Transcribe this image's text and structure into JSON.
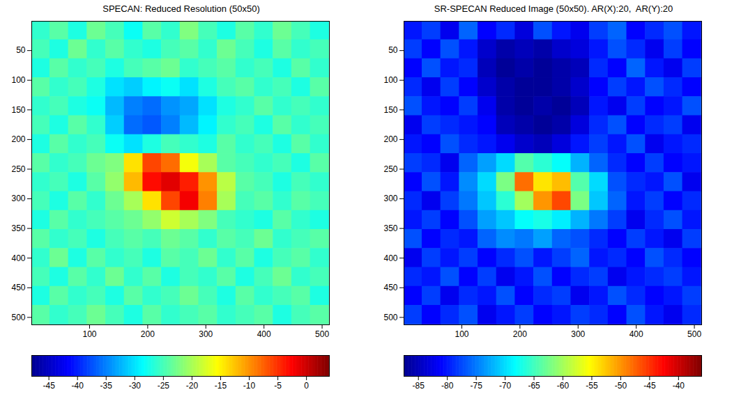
{
  "chart_data": [
    {
      "type": "heatmap",
      "title": "SPECAN: Reduced Resolution (50x50)",
      "color": "jet",
      "x": [
        16,
        48,
        80,
        112,
        144,
        176,
        208,
        240,
        272,
        304,
        336,
        368,
        400,
        432,
        464,
        496
      ],
      "y": [
        16,
        48,
        80,
        112,
        144,
        176,
        208,
        240,
        272,
        304,
        336,
        368,
        400,
        432,
        464,
        496
      ],
      "xlim": [
        0.5,
        512.5
      ],
      "ylim": [
        512.5,
        0.5
      ],
      "xticks": [
        100,
        200,
        300,
        400,
        500
      ],
      "yticks": [
        50,
        100,
        150,
        200,
        250,
        300,
        350,
        400,
        450,
        500
      ],
      "values": [
        [
          -26,
          -24,
          -27,
          -23,
          -25,
          -28,
          -24,
          -26,
          -22,
          -25,
          -27,
          -24,
          -26,
          -23,
          -25,
          -27
        ],
        [
          -25,
          -27,
          -23,
          -26,
          -24,
          -26,
          -27,
          -25,
          -24,
          -26,
          -23,
          -25,
          -27,
          -24,
          -26,
          -25
        ],
        [
          -27,
          -24,
          -26,
          -25,
          -27,
          -25,
          -24,
          -23,
          -26,
          -25,
          -24,
          -26,
          -25,
          -27,
          -24,
          -26
        ],
        [
          -24,
          -26,
          -25,
          -27,
          -30,
          -31,
          -29,
          -28,
          -30,
          -27,
          -25,
          -24,
          -26,
          -25,
          -27,
          -24
        ],
        [
          -26,
          -25,
          -27,
          -28,
          -32,
          -35,
          -36,
          -34,
          -33,
          -30,
          -27,
          -26,
          -24,
          -26,
          -25,
          -26
        ],
        [
          -25,
          -27,
          -24,
          -26,
          -31,
          -36,
          -37,
          -35,
          -32,
          -29,
          -26,
          -25,
          -27,
          -24,
          -26,
          -25
        ],
        [
          -27,
          -24,
          -26,
          -25,
          -28,
          -30,
          -27,
          -25,
          -26,
          -27,
          -24,
          -26,
          -25,
          -27,
          -24,
          -26
        ],
        [
          -24,
          -26,
          -25,
          -23,
          -22,
          -14,
          -6,
          -8,
          -16,
          -20,
          -24,
          -25,
          -26,
          -25,
          -27,
          -24
        ],
        [
          -26,
          -25,
          -27,
          -24,
          -21,
          -12,
          -3,
          -1,
          -4,
          -10,
          -19,
          -24,
          -25,
          -27,
          -25,
          -26
        ],
        [
          -25,
          -27,
          -24,
          -26,
          -23,
          -20,
          -14,
          -6,
          -2,
          -9,
          -20,
          -25,
          -24,
          -26,
          -24,
          -25
        ],
        [
          -27,
          -24,
          -26,
          -25,
          -24,
          -23,
          -21,
          -18,
          -20,
          -22,
          -25,
          -26,
          -27,
          -24,
          -26,
          -27
        ],
        [
          -24,
          -26,
          -25,
          -27,
          -25,
          -24,
          -25,
          -23,
          -24,
          -26,
          -24,
          -25,
          -23,
          -26,
          -25,
          -24
        ],
        [
          -26,
          -23,
          -27,
          -24,
          -26,
          -25,
          -27,
          -24,
          -25,
          -23,
          -26,
          -24,
          -27,
          -25,
          -24,
          -26
        ],
        [
          -25,
          -27,
          -24,
          -26,
          -23,
          -26,
          -24,
          -27,
          -25,
          -26,
          -24,
          -27,
          -25,
          -23,
          -26,
          -25
        ],
        [
          -27,
          -24,
          -26,
          -25,
          -27,
          -24,
          -26,
          -25,
          -23,
          -25,
          -27,
          -24,
          -26,
          -25,
          -24,
          -27
        ],
        [
          -24,
          -26,
          -25,
          -23,
          -25,
          -27,
          -24,
          -26,
          -25,
          -24,
          -26,
          -25,
          -24,
          -27,
          -25,
          -24
        ]
      ],
      "colorbar": {
        "range": [
          -48,
          4
        ],
        "ticks": [
          -45,
          -40,
          -35,
          -30,
          -25,
          -20,
          -15,
          -10,
          -5,
          0
        ]
      }
    },
    {
      "type": "heatmap",
      "title": "SR-SPECAN Reduced Image (50x50). AR(X):20,  AR(Y):20",
      "color": "jet",
      "x": [
        16,
        48,
        80,
        112,
        144,
        176,
        208,
        240,
        272,
        304,
        336,
        368,
        400,
        432,
        464,
        496
      ],
      "y": [
        16,
        48,
        80,
        112,
        144,
        176,
        208,
        240,
        272,
        304,
        336,
        368,
        400,
        432,
        464,
        496
      ],
      "xlim": [
        0.5,
        512.5
      ],
      "ylim": [
        512.5,
        0.5
      ],
      "xticks": [
        100,
        200,
        300,
        400,
        500
      ],
      "yticks": [
        50,
        100,
        150,
        200,
        250,
        300,
        350,
        400,
        450,
        500
      ],
      "values": [
        [
          -80,
          -78,
          -82,
          -76,
          -81,
          -79,
          -83,
          -77,
          -80,
          -82,
          -78,
          -76,
          -81,
          -79,
          -77,
          -80
        ],
        [
          -78,
          -81,
          -77,
          -80,
          -84,
          -86,
          -85,
          -86,
          -84,
          -83,
          -80,
          -77,
          -79,
          -82,
          -78,
          -81
        ],
        [
          -81,
          -77,
          -80,
          -79,
          -85,
          -87,
          -86,
          -87,
          -86,
          -85,
          -79,
          -81,
          -76,
          -80,
          -82,
          -78
        ],
        [
          -79,
          -82,
          -78,
          -81,
          -84,
          -86,
          -87,
          -87,
          -86,
          -84,
          -81,
          -78,
          -80,
          -77,
          -79,
          -81
        ],
        [
          -77,
          -80,
          -81,
          -78,
          -82,
          -86,
          -87,
          -86,
          -87,
          -85,
          -80,
          -82,
          -78,
          -81,
          -80,
          -77
        ],
        [
          -82,
          -78,
          -79,
          -80,
          -81,
          -85,
          -86,
          -87,
          -86,
          -83,
          -79,
          -77,
          -81,
          -79,
          -78,
          -82
        ],
        [
          -80,
          -81,
          -77,
          -79,
          -80,
          -82,
          -84,
          -85,
          -83,
          -80,
          -78,
          -80,
          -77,
          -82,
          -80,
          -79
        ],
        [
          -78,
          -79,
          -82,
          -76,
          -73,
          -70,
          -64,
          -66,
          -68,
          -72,
          -76,
          -79,
          -81,
          -78,
          -81,
          -80
        ],
        [
          -81,
          -77,
          -80,
          -74,
          -70,
          -62,
          -48,
          -54,
          -52,
          -64,
          -70,
          -77,
          -79,
          -80,
          -77,
          -82
        ],
        [
          -79,
          -82,
          -78,
          -75,
          -71,
          -66,
          -60,
          -50,
          -46,
          -62,
          -71,
          -76,
          -80,
          -78,
          -81,
          -79
        ],
        [
          -80,
          -78,
          -81,
          -77,
          -73,
          -71,
          -68,
          -67,
          -69,
          -72,
          -75,
          -78,
          -82,
          -79,
          -77,
          -80
        ],
        [
          -77,
          -81,
          -79,
          -80,
          -76,
          -74,
          -75,
          -73,
          -76,
          -77,
          -79,
          -81,
          -78,
          -80,
          -82,
          -78
        ],
        [
          -82,
          -78,
          -80,
          -78,
          -81,
          -79,
          -77,
          -80,
          -78,
          -76,
          -80,
          -79,
          -81,
          -77,
          -79,
          -81
        ],
        [
          -79,
          -80,
          -77,
          -81,
          -78,
          -82,
          -80,
          -77,
          -81,
          -79,
          -78,
          -82,
          -80,
          -79,
          -78,
          -80
        ],
        [
          -81,
          -78,
          -82,
          -79,
          -80,
          -77,
          -81,
          -79,
          -78,
          -82,
          -80,
          -77,
          -79,
          -81,
          -80,
          -78
        ],
        [
          -78,
          -81,
          -79,
          -77,
          -82,
          -80,
          -78,
          -81,
          -80,
          -78,
          -79,
          -81,
          -77,
          -80,
          -82,
          -79
        ]
      ],
      "colorbar": {
        "range": [
          -87.5,
          -36
        ],
        "ticks": [
          -85,
          -80,
          -75,
          -70,
          -65,
          -60,
          -55,
          -50,
          -45,
          -40
        ]
      }
    }
  ]
}
